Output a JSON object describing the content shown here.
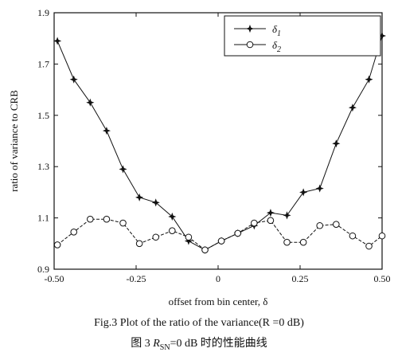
{
  "chart_data": {
    "type": "line",
    "xlabel": "offset from bin center, δ",
    "ylabel": "ratio of variance to CRB",
    "xlim": [
      -0.5,
      0.5
    ],
    "ylim": [
      0.9,
      1.9
    ],
    "xticks": [
      "-0.50",
      "-0.25",
      "0",
      "0.25",
      "0.50"
    ],
    "xtick_values": [
      -0.5,
      -0.25,
      0,
      0.25,
      0.5
    ],
    "yticks": [
      "0.9",
      "1.1",
      "1.3",
      "1.5",
      "1.7",
      "1.9"
    ],
    "ytick_values": [
      0.9,
      1.1,
      1.3,
      1.5,
      1.7,
      1.9
    ],
    "grid": false,
    "legend_position": "top-right",
    "series": [
      {
        "name": "δ1",
        "marker": "star",
        "x": [
          -0.49,
          -0.44,
          -0.39,
          -0.34,
          -0.29,
          -0.24,
          -0.19,
          -0.14,
          -0.09,
          -0.04,
          0.01,
          0.06,
          0.11,
          0.16,
          0.21,
          0.26,
          0.31,
          0.36,
          0.41,
          0.46,
          0.5
        ],
        "y": [
          1.79,
          1.64,
          1.55,
          1.44,
          1.29,
          1.18,
          1.16,
          1.105,
          1.01,
          0.975,
          1.01,
          1.04,
          1.07,
          1.12,
          1.11,
          1.2,
          1.215,
          1.39,
          1.53,
          1.64,
          1.81
        ]
      },
      {
        "name": "δ2",
        "marker": "circle",
        "x": [
          -0.49,
          -0.44,
          -0.39,
          -0.34,
          -0.29,
          -0.24,
          -0.19,
          -0.14,
          -0.09,
          -0.04,
          0.01,
          0.06,
          0.11,
          0.16,
          0.21,
          0.26,
          0.31,
          0.36,
          0.41,
          0.46,
          0.5
        ],
        "y": [
          0.995,
          1.045,
          1.095,
          1.095,
          1.08,
          1.0,
          1.025,
          1.05,
          1.025,
          0.975,
          1.01,
          1.04,
          1.08,
          1.09,
          1.005,
          1.005,
          1.07,
          1.075,
          1.03,
          0.99,
          1.03
        ]
      }
    ]
  },
  "legend": {
    "s1_base": "δ",
    "s1_sub": "1",
    "s2_base": "δ",
    "s2_sub": "2"
  },
  "captions": {
    "english": "Fig.3 Plot of the ratio of the variance(R  =0 dB)",
    "chinese_prefix": "图 3 ",
    "chinese_r": "R",
    "chinese_sub": "SN",
    "chinese_suffix": "=0 dB 时的性能曲线"
  }
}
